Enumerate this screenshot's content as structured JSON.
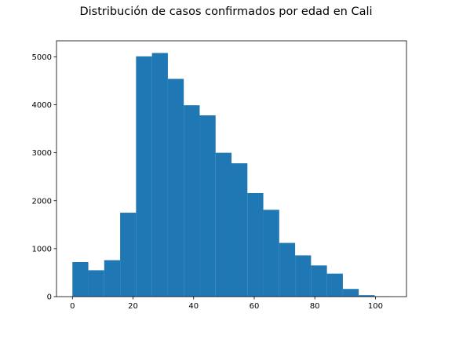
{
  "chart_data": {
    "type": "bar",
    "title": "Distribución de casos confirmados por edad en Cali",
    "xlabel": "",
    "ylabel": "",
    "bins": [
      {
        "x0": 0,
        "x1": 5.25,
        "value": 720
      },
      {
        "x0": 5.25,
        "x1": 10.5,
        "value": 550
      },
      {
        "x0": 10.5,
        "x1": 15.75,
        "value": 760
      },
      {
        "x0": 15.75,
        "x1": 21.0,
        "value": 1750
      },
      {
        "x0": 21.0,
        "x1": 26.25,
        "value": 5010
      },
      {
        "x0": 26.25,
        "x1": 31.5,
        "value": 5080
      },
      {
        "x0": 31.5,
        "x1": 36.75,
        "value": 4540
      },
      {
        "x0": 36.75,
        "x1": 42.0,
        "value": 3990
      },
      {
        "x0": 42.0,
        "x1": 47.25,
        "value": 3780
      },
      {
        "x0": 47.25,
        "x1": 52.5,
        "value": 3000
      },
      {
        "x0": 52.5,
        "x1": 57.75,
        "value": 2780
      },
      {
        "x0": 57.75,
        "x1": 63.0,
        "value": 2160
      },
      {
        "x0": 63.0,
        "x1": 68.25,
        "value": 1810
      },
      {
        "x0": 68.25,
        "x1": 73.5,
        "value": 1120
      },
      {
        "x0": 73.5,
        "x1": 78.75,
        "value": 860
      },
      {
        "x0": 78.75,
        "x1": 84.0,
        "value": 650
      },
      {
        "x0": 84.0,
        "x1": 89.25,
        "value": 480
      },
      {
        "x0": 89.25,
        "x1": 94.5,
        "value": 160
      },
      {
        "x0": 94.5,
        "x1": 99.75,
        "value": 30
      },
      {
        "x0": 99.75,
        "x1": 105.0,
        "value": 5
      }
    ],
    "xlim": [
      -5.25,
      110.25
    ],
    "ylim": [
      0,
      5334
    ],
    "xticks": [
      0,
      20,
      40,
      60,
      80,
      100
    ],
    "yticks": [
      0,
      1000,
      2000,
      3000,
      4000,
      5000
    ],
    "bar_color": "#1f77b4",
    "grid": false,
    "legend": "none"
  }
}
